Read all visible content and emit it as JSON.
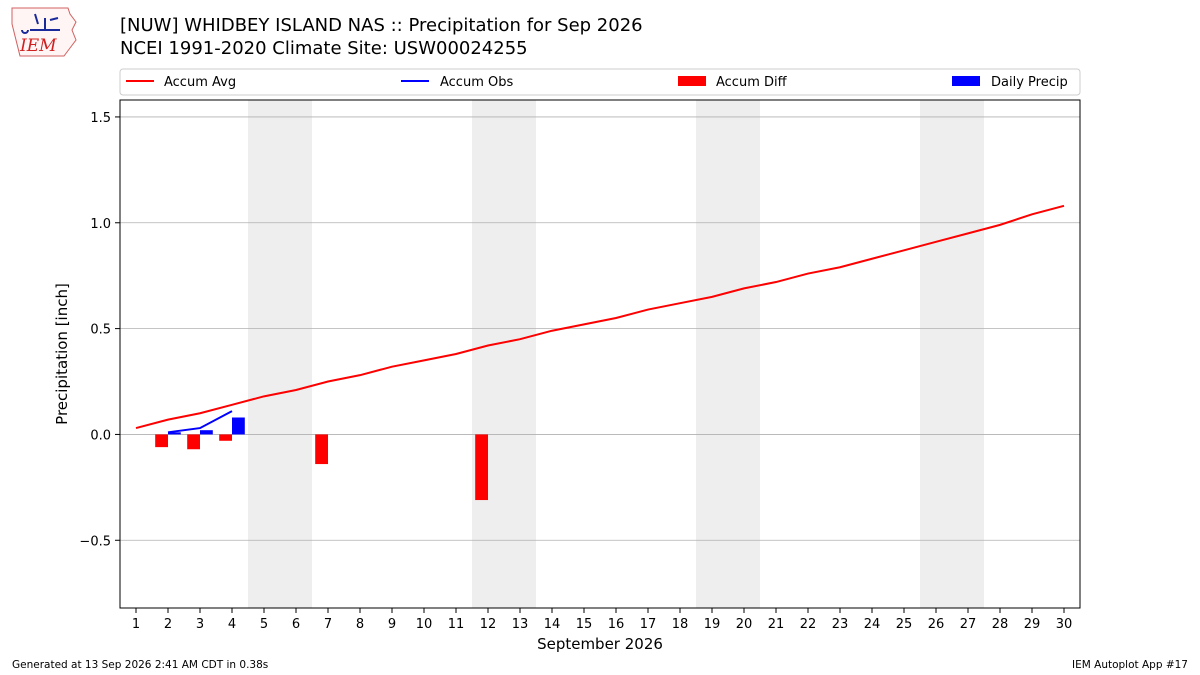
{
  "header": {
    "title_line1": "[NUW] WHIDBEY ISLAND NAS :: Precipitation for Sep 2026",
    "title_line2": "NCEI 1991-2020 Climate Site: USW00024255"
  },
  "logo": {
    "text": "IEM"
  },
  "footer": {
    "generated": "Generated at 13 Sep 2026 2:41 AM CDT in 0.38s",
    "app": "IEM Autoplot App #17"
  },
  "colors": {
    "avg": "#ff0000",
    "obs": "#0000ff",
    "diff": "#ff0000",
    "daily": "#0000ff",
    "weekend_band": "#eeeeee",
    "grid": "#b0b0b0"
  },
  "chart_data": {
    "type": "line",
    "xlabel": "September 2026",
    "ylabel": "Precipitation [inch]",
    "xlim": [
      0.5,
      30.5
    ],
    "ylim": [
      -0.82,
      1.58
    ],
    "x_ticks": [
      1,
      2,
      3,
      4,
      5,
      6,
      7,
      8,
      9,
      10,
      11,
      12,
      13,
      14,
      15,
      16,
      17,
      18,
      19,
      20,
      21,
      22,
      23,
      24,
      25,
      26,
      27,
      28,
      29,
      30
    ],
    "y_ticks": [
      -0.5,
      0.0,
      0.5,
      1.0,
      1.5
    ],
    "y_tick_labels": [
      "−0.5",
      "0.0",
      "0.5",
      "1.0",
      "1.5"
    ],
    "grid": "horizontal",
    "legend": {
      "placement": "top",
      "entries": [
        "Accum Avg",
        "Accum Obs",
        "Accum Diff",
        "Daily Precip"
      ]
    },
    "weekend_bands": [
      [
        4.5,
        6.5
      ],
      [
        11.5,
        13.5
      ],
      [
        18.5,
        20.5
      ],
      [
        25.5,
        27.5
      ]
    ],
    "series": [
      {
        "name": "Accum Avg",
        "kind": "line",
        "x": [
          1,
          2,
          3,
          4,
          5,
          6,
          7,
          8,
          9,
          10,
          11,
          12,
          13,
          14,
          15,
          16,
          17,
          18,
          19,
          20,
          21,
          22,
          23,
          24,
          25,
          26,
          27,
          28,
          29,
          30
        ],
        "values": [
          0.03,
          0.07,
          0.1,
          0.14,
          0.18,
          0.21,
          0.25,
          0.28,
          0.32,
          0.35,
          0.38,
          0.42,
          0.45,
          0.49,
          0.52,
          0.55,
          0.59,
          0.62,
          0.65,
          0.69,
          0.72,
          0.76,
          0.79,
          0.83,
          0.87,
          0.91,
          0.95,
          0.99,
          1.04,
          1.08
        ]
      },
      {
        "name": "Accum Obs",
        "kind": "line",
        "x": [
          2,
          3,
          4
        ],
        "values": [
          0.01,
          0.03,
          0.11
        ]
      },
      {
        "name": "Accum Diff",
        "kind": "bar",
        "x": [
          1.8,
          2.8,
          3.8,
          6.8,
          11.8
        ],
        "values": [
          -0.06,
          -0.07,
          -0.03,
          -0.14,
          -0.31
        ]
      },
      {
        "name": "Daily Precip",
        "kind": "bar",
        "x": [
          2.2,
          3.2,
          4.2
        ],
        "values": [
          0.01,
          0.02,
          0.08
        ]
      }
    ]
  }
}
